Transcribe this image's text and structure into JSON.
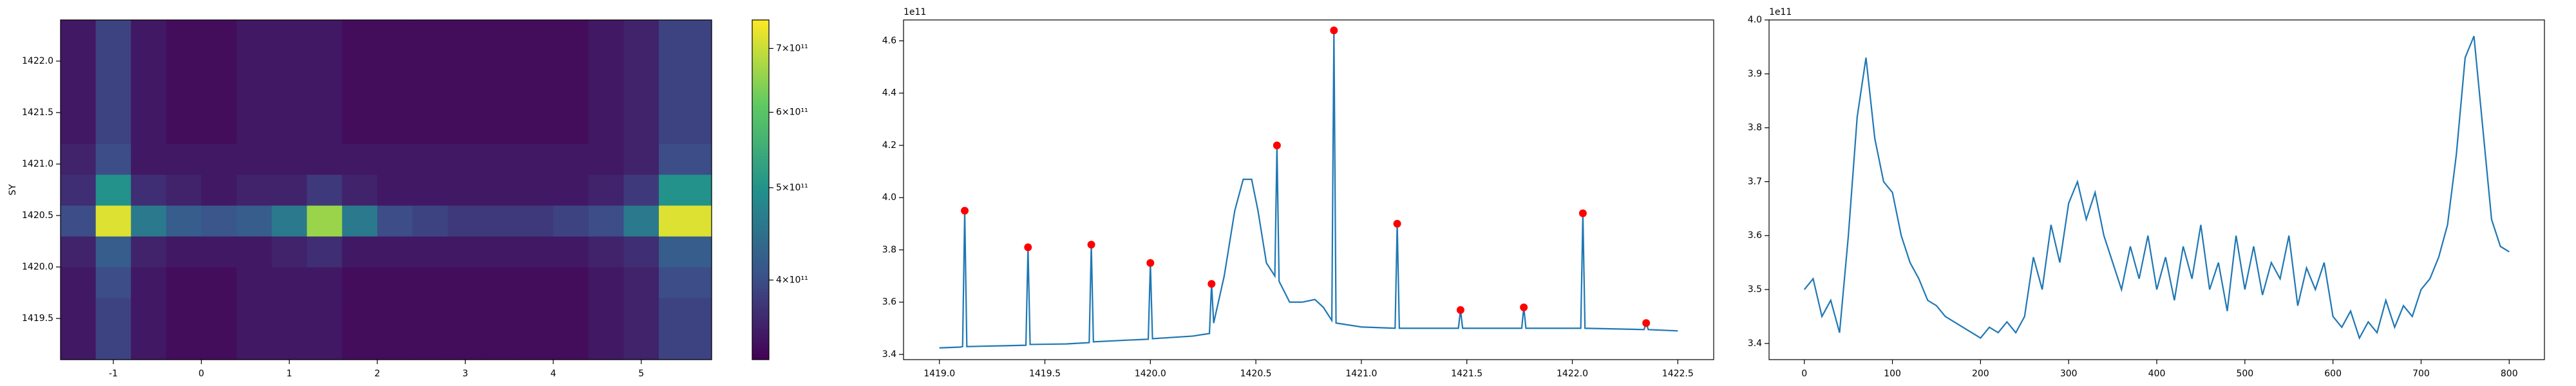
{
  "chart_data": [
    {
      "type": "heatmap",
      "y_label": "SY",
      "x": [
        -1.4,
        -1.0,
        -0.6,
        -0.2,
        0.2,
        0.6,
        1.0,
        1.4,
        1.8,
        2.2,
        2.6,
        3.0,
        3.4,
        3.8,
        4.2,
        4.6,
        5.0,
        5.4
      ],
      "y": [
        1419.25,
        1419.55,
        1419.85,
        1420.15,
        1420.45,
        1420.75,
        1421.05,
        1421.35,
        1421.65,
        1421.95,
        1422.25
      ],
      "z": [
        [
          350000000000.0,
          390000000000.0,
          350000000000.0,
          340000000000.0,
          340000000000.0,
          350000000000.0,
          350000000000.0,
          350000000000.0,
          340000000000.0,
          340000000000.0,
          340000000000.0,
          340000000000.0,
          340000000000.0,
          340000000000.0,
          340000000000.0,
          350000000000.0,
          360000000000.0,
          390000000000.0
        ],
        [
          350000000000.0,
          390000000000.0,
          350000000000.0,
          340000000000.0,
          340000000000.0,
          350000000000.0,
          350000000000.0,
          350000000000.0,
          340000000000.0,
          340000000000.0,
          340000000000.0,
          340000000000.0,
          340000000000.0,
          340000000000.0,
          340000000000.0,
          350000000000.0,
          360000000000.0,
          390000000000.0
        ],
        [
          350000000000.0,
          400000000000.0,
          350000000000.0,
          340000000000.0,
          340000000000.0,
          350000000000.0,
          350000000000.0,
          350000000000.0,
          340000000000.0,
          340000000000.0,
          340000000000.0,
          340000000000.0,
          340000000000.0,
          340000000000.0,
          340000000000.0,
          350000000000.0,
          360000000000.0,
          400000000000.0
        ],
        [
          360000000000.0,
          420000000000.0,
          360000000000.0,
          350000000000.0,
          350000000000.0,
          350000000000.0,
          360000000000.0,
          370000000000.0,
          350000000000.0,
          350000000000.0,
          350000000000.0,
          350000000000.0,
          350000000000.0,
          350000000000.0,
          350000000000.0,
          360000000000.0,
          370000000000.0,
          420000000000.0
        ],
        [
          400000000000.0,
          720000000000.0,
          460000000000.0,
          420000000000.0,
          410000000000.0,
          420000000000.0,
          460000000000.0,
          660000000000.0,
          460000000000.0,
          400000000000.0,
          390000000000.0,
          380000000000.0,
          380000000000.0,
          380000000000.0,
          390000000000.0,
          400000000000.0,
          460000000000.0,
          720000000000.0
        ],
        [
          370000000000.0,
          500000000000.0,
          370000000000.0,
          360000000000.0,
          350000000000.0,
          360000000000.0,
          360000000000.0,
          380000000000.0,
          360000000000.0,
          350000000000.0,
          350000000000.0,
          350000000000.0,
          350000000000.0,
          350000000000.0,
          350000000000.0,
          360000000000.0,
          380000000000.0,
          500000000000.0
        ],
        [
          360000000000.0,
          400000000000.0,
          350000000000.0,
          350000000000.0,
          350000000000.0,
          350000000000.0,
          350000000000.0,
          350000000000.0,
          350000000000.0,
          350000000000.0,
          350000000000.0,
          350000000000.0,
          350000000000.0,
          350000000000.0,
          350000000000.0,
          350000000000.0,
          360000000000.0,
          400000000000.0
        ],
        [
          350000000000.0,
          390000000000.0,
          350000000000.0,
          340000000000.0,
          340000000000.0,
          350000000000.0,
          350000000000.0,
          350000000000.0,
          340000000000.0,
          340000000000.0,
          340000000000.0,
          340000000000.0,
          340000000000.0,
          340000000000.0,
          340000000000.0,
          350000000000.0,
          360000000000.0,
          390000000000.0
        ],
        [
          350000000000.0,
          390000000000.0,
          350000000000.0,
          340000000000.0,
          340000000000.0,
          350000000000.0,
          350000000000.0,
          350000000000.0,
          340000000000.0,
          340000000000.0,
          340000000000.0,
          340000000000.0,
          340000000000.0,
          340000000000.0,
          340000000000.0,
          350000000000.0,
          360000000000.0,
          390000000000.0
        ],
        [
          350000000000.0,
          390000000000.0,
          350000000000.0,
          340000000000.0,
          340000000000.0,
          350000000000.0,
          350000000000.0,
          350000000000.0,
          340000000000.0,
          340000000000.0,
          340000000000.0,
          340000000000.0,
          340000000000.0,
          340000000000.0,
          340000000000.0,
          350000000000.0,
          360000000000.0,
          390000000000.0
        ],
        [
          350000000000.0,
          390000000000.0,
          350000000000.0,
          340000000000.0,
          340000000000.0,
          350000000000.0,
          350000000000.0,
          350000000000.0,
          340000000000.0,
          340000000000.0,
          340000000000.0,
          340000000000.0,
          340000000000.0,
          340000000000.0,
          340000000000.0,
          350000000000.0,
          360000000000.0,
          390000000000.0
        ]
      ],
      "xlim": [
        -1.6,
        5.8
      ],
      "xticks": [
        -1,
        0,
        1,
        2,
        3,
        4,
        5
      ],
      "ylim": [
        1419.1,
        1422.4
      ],
      "yticks": [
        1419.5,
        {
          "value": 1420.0,
          "label": "1420.0"
        },
        1420.5,
        {
          "value": 1421.0,
          "label": "1421.0"
        },
        1421.5,
        {
          "value": 1422.0,
          "label": "1422.0"
        }
      ],
      "colormap": "viridis",
      "color_log": true,
      "clim": [
        330000000000.0,
        750000000000.0
      ],
      "cticks": [
        {
          "value": 400000000000.0,
          "label": "4×10¹¹"
        },
        {
          "value": 500000000000.0,
          "label": "5×10¹¹"
        },
        {
          "value": 600000000000.0,
          "label": "6×10¹¹"
        },
        {
          "value": 700000000000.0,
          "label": "7×10¹¹"
        }
      ]
    },
    {
      "type": "line",
      "offset_text": "1e11",
      "series": [
        {
          "kind": "line",
          "color": "#1f77b4",
          "x": [
            1419.0,
            1419.1,
            1419.11,
            1419.12,
            1419.13,
            1419.3,
            1419.41,
            1419.42,
            1419.43,
            1419.6,
            1419.71,
            1419.72,
            1419.73,
            1419.9,
            1419.99,
            1420.0,
            1420.01,
            1420.2,
            1420.28,
            1420.29,
            1420.3,
            1420.35,
            1420.4,
            1420.44,
            1420.48,
            1420.51,
            1420.55,
            1420.59,
            1420.6,
            1420.61,
            1420.66,
            1420.72,
            1420.78,
            1420.82,
            1420.86,
            1420.87,
            1420.88,
            1421.0,
            1421.16,
            1421.17,
            1421.18,
            1421.46,
            1421.47,
            1421.48,
            1421.76,
            1421.77,
            1421.78,
            1422.04,
            1422.05,
            1422.06,
            1422.34,
            1422.35,
            1422.36,
            1422.5
          ],
          "values": [
            3.425,
            3.428,
            3.43,
            3.95,
            3.43,
            3.433,
            3.435,
            3.81,
            3.438,
            3.44,
            3.445,
            3.82,
            3.448,
            3.455,
            3.458,
            3.75,
            3.46,
            3.47,
            3.48,
            3.67,
            3.52,
            3.7,
            3.95,
            4.07,
            4.07,
            3.95,
            3.75,
            3.7,
            4.2,
            3.68,
            3.6,
            3.6,
            3.61,
            3.58,
            3.53,
            4.64,
            3.52,
            3.505,
            3.5,
            3.9,
            3.5,
            3.5,
            3.57,
            3.5,
            3.5,
            3.58,
            3.5,
            3.5,
            3.94,
            3.5,
            3.495,
            3.52,
            3.495,
            3.49
          ]
        },
        {
          "kind": "scatter",
          "color": "#ff0000",
          "x": [
            1419.12,
            1419.42,
            1419.72,
            1420.0,
            1420.29,
            1420.6,
            1420.87,
            1421.17,
            1421.47,
            1421.77,
            1422.05,
            1422.35
          ],
          "values": [
            3.95,
            3.81,
            3.82,
            3.75,
            3.67,
            4.2,
            4.64,
            3.9,
            3.57,
            3.58,
            3.94,
            3.52
          ]
        }
      ],
      "xlim": [
        1418.83,
        1422.67
      ],
      "xticks": [
        {
          "value": 1419.0,
          "label": "1419.0"
        },
        1419.5,
        {
          "value": 1420.0,
          "label": "1420.0"
        },
        1420.5,
        {
          "value": 1421.0,
          "label": "1421.0"
        },
        1421.5,
        {
          "value": 1422.0,
          "label": "1422.0"
        },
        1422.5
      ],
      "ylim": [
        3.38,
        4.68
      ],
      "yticks": [
        3.4,
        3.6,
        3.8,
        {
          "value": 4.0,
          "label": "4.0"
        },
        4.2,
        4.4,
        4.6
      ]
    },
    {
      "type": "line",
      "offset_text": "1e11",
      "series": [
        {
          "kind": "line",
          "color": "#1f77b4",
          "x": [
            0,
            10,
            20,
            30,
            40,
            50,
            60,
            70,
            80,
            90,
            100,
            110,
            120,
            130,
            140,
            150,
            160,
            170,
            180,
            190,
            200,
            210,
            220,
            230,
            240,
            250,
            260,
            270,
            280,
            290,
            300,
            310,
            320,
            330,
            340,
            350,
            360,
            370,
            380,
            390,
            400,
            410,
            420,
            430,
            440,
            450,
            460,
            470,
            480,
            490,
            500,
            510,
            520,
            530,
            540,
            550,
            560,
            570,
            580,
            590,
            600,
            610,
            620,
            630,
            640,
            650,
            660,
            670,
            680,
            690,
            700,
            710,
            720,
            730,
            740,
            750,
            760,
            770,
            780,
            790,
            800
          ],
          "values": [
            3.5,
            3.52,
            3.45,
            3.48,
            3.42,
            3.6,
            3.82,
            3.93,
            3.78,
            3.7,
            3.68,
            3.6,
            3.55,
            3.52,
            3.48,
            3.47,
            3.45,
            3.44,
            3.43,
            3.42,
            3.41,
            3.43,
            3.42,
            3.44,
            3.42,
            3.45,
            3.56,
            3.5,
            3.62,
            3.55,
            3.66,
            3.7,
            3.63,
            3.68,
            3.6,
            3.55,
            3.5,
            3.58,
            3.52,
            3.6,
            3.5,
            3.56,
            3.48,
            3.58,
            3.52,
            3.62,
            3.5,
            3.55,
            3.46,
            3.6,
            3.5,
            3.58,
            3.49,
            3.55,
            3.52,
            3.6,
            3.47,
            3.54,
            3.5,
            3.55,
            3.45,
            3.43,
            3.46,
            3.41,
            3.44,
            3.42,
            3.48,
            3.43,
            3.47,
            3.45,
            3.5,
            3.52,
            3.56,
            3.62,
            3.75,
            3.93,
            3.97,
            3.8,
            3.63,
            3.58,
            3.57
          ]
        }
      ],
      "xlim": [
        -40,
        840
      ],
      "xticks": [
        0,
        100,
        200,
        300,
        400,
        500,
        600,
        700,
        800
      ],
      "ylim": [
        3.37,
        4.0
      ],
      "yticks": [
        3.4,
        3.5,
        3.6,
        3.7,
        3.8,
        3.9,
        {
          "value": 4.0,
          "label": "4.0"
        }
      ]
    }
  ]
}
